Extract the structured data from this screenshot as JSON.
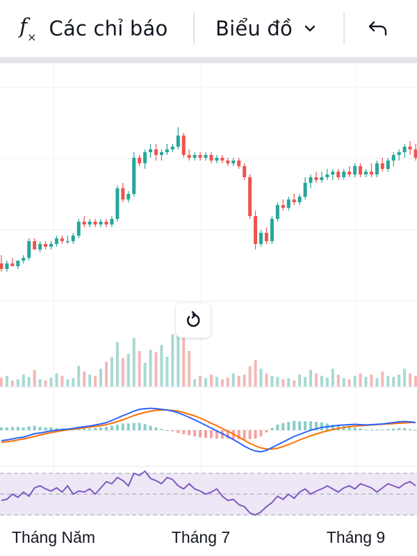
{
  "toolbar": {
    "indicators_label": "Các chỉ báo",
    "indicators_icon": "function-fx-icon",
    "chart_type_label": "Biểu đồ",
    "chart_type_icon": "chevron-down-icon",
    "undo_icon": "undo-arrow-icon"
  },
  "reset_icon": "reset-rotate-icon",
  "colors": {
    "up": "#26a69a",
    "down": "#ef5350",
    "volume_up": "#a8d9d3",
    "volume_down": "#f3b8b6",
    "macd_line": "#2962ff",
    "signal_line": "#ff6d00",
    "rsi_line": "#7e57c2",
    "rsi_band": "#ede7f6"
  },
  "chart_data": {
    "type": "candlestick",
    "time_labels": [
      "Tháng Năm",
      "Tháng 7",
      "Tháng 9"
    ],
    "panes": [
      "price",
      "volume",
      "macd",
      "rsi"
    ],
    "grid": true,
    "price": {
      "ohlc_relative": [
        [
          0.33,
          0.36,
          0.3,
          0.31
        ],
        [
          0.31,
          0.34,
          0.3,
          0.33
        ],
        [
          0.33,
          0.35,
          0.32,
          0.32
        ],
        [
          0.32,
          0.34,
          0.31,
          0.34
        ],
        [
          0.34,
          0.36,
          0.33,
          0.35
        ],
        [
          0.35,
          0.42,
          0.34,
          0.41
        ],
        [
          0.41,
          0.42,
          0.38,
          0.38
        ],
        [
          0.38,
          0.41,
          0.37,
          0.4
        ],
        [
          0.4,
          0.41,
          0.38,
          0.39
        ],
        [
          0.39,
          0.41,
          0.38,
          0.4
        ],
        [
          0.4,
          0.43,
          0.39,
          0.42
        ],
        [
          0.42,
          0.43,
          0.4,
          0.41
        ],
        [
          0.41,
          0.43,
          0.4,
          0.41
        ],
        [
          0.41,
          0.44,
          0.4,
          0.43
        ],
        [
          0.43,
          0.49,
          0.42,
          0.48
        ],
        [
          0.48,
          0.5,
          0.46,
          0.47
        ],
        [
          0.47,
          0.49,
          0.46,
          0.48
        ],
        [
          0.48,
          0.49,
          0.46,
          0.47
        ],
        [
          0.47,
          0.49,
          0.46,
          0.48
        ],
        [
          0.48,
          0.49,
          0.46,
          0.47
        ],
        [
          0.47,
          0.5,
          0.46,
          0.49
        ],
        [
          0.49,
          0.61,
          0.48,
          0.6
        ],
        [
          0.6,
          0.62,
          0.55,
          0.56
        ],
        [
          0.56,
          0.59,
          0.55,
          0.58
        ],
        [
          0.58,
          0.73,
          0.57,
          0.71
        ],
        [
          0.71,
          0.72,
          0.68,
          0.69
        ],
        [
          0.69,
          0.74,
          0.67,
          0.73
        ],
        [
          0.73,
          0.76,
          0.71,
          0.74
        ],
        [
          0.74,
          0.76,
          0.7,
          0.72
        ],
        [
          0.72,
          0.74,
          0.7,
          0.73
        ],
        [
          0.73,
          0.76,
          0.72,
          0.74
        ],
        [
          0.74,
          0.76,
          0.73,
          0.75
        ],
        [
          0.75,
          0.82,
          0.74,
          0.79
        ],
        [
          0.79,
          0.8,
          0.71,
          0.72
        ],
        [
          0.72,
          0.74,
          0.7,
          0.71
        ],
        [
          0.71,
          0.73,
          0.7,
          0.72
        ],
        [
          0.72,
          0.73,
          0.7,
          0.71
        ],
        [
          0.71,
          0.73,
          0.7,
          0.72
        ],
        [
          0.72,
          0.73,
          0.69,
          0.7
        ],
        [
          0.7,
          0.72,
          0.69,
          0.71
        ],
        [
          0.71,
          0.72,
          0.69,
          0.7
        ],
        [
          0.7,
          0.71,
          0.68,
          0.69
        ],
        [
          0.69,
          0.71,
          0.68,
          0.7
        ],
        [
          0.7,
          0.71,
          0.67,
          0.68
        ],
        [
          0.68,
          0.69,
          0.63,
          0.64
        ],
        [
          0.64,
          0.65,
          0.49,
          0.5
        ],
        [
          0.5,
          0.52,
          0.38,
          0.4
        ],
        [
          0.4,
          0.45,
          0.39,
          0.44
        ],
        [
          0.44,
          0.46,
          0.4,
          0.41
        ],
        [
          0.41,
          0.5,
          0.4,
          0.49
        ],
        [
          0.49,
          0.55,
          0.48,
          0.54
        ],
        [
          0.54,
          0.56,
          0.52,
          0.53
        ],
        [
          0.53,
          0.57,
          0.52,
          0.56
        ],
        [
          0.56,
          0.58,
          0.54,
          0.55
        ],
        [
          0.55,
          0.58,
          0.54,
          0.57
        ],
        [
          0.57,
          0.64,
          0.56,
          0.62
        ],
        [
          0.62,
          0.65,
          0.6,
          0.64
        ],
        [
          0.64,
          0.66,
          0.62,
          0.63
        ],
        [
          0.63,
          0.66,
          0.62,
          0.64
        ],
        [
          0.64,
          0.67,
          0.63,
          0.65
        ],
        [
          0.65,
          0.67,
          0.63,
          0.66
        ],
        [
          0.66,
          0.67,
          0.63,
          0.64
        ],
        [
          0.64,
          0.67,
          0.63,
          0.66
        ],
        [
          0.66,
          0.68,
          0.64,
          0.65
        ],
        [
          0.65,
          0.69,
          0.64,
          0.68
        ],
        [
          0.68,
          0.69,
          0.64,
          0.65
        ],
        [
          0.65,
          0.67,
          0.64,
          0.66
        ],
        [
          0.66,
          0.69,
          0.64,
          0.65
        ],
        [
          0.65,
          0.7,
          0.64,
          0.69
        ],
        [
          0.69,
          0.71,
          0.66,
          0.67
        ],
        [
          0.67,
          0.71,
          0.66,
          0.7
        ],
        [
          0.7,
          0.73,
          0.68,
          0.72
        ],
        [
          0.72,
          0.74,
          0.7,
          0.73
        ],
        [
          0.73,
          0.76,
          0.71,
          0.75
        ],
        [
          0.75,
          0.77,
          0.72,
          0.74
        ],
        [
          0.74,
          0.76,
          0.7,
          0.71
        ]
      ]
    },
    "volume_relative": [
      0.15,
      0.18,
      0.1,
      0.12,
      0.2,
      0.16,
      0.28,
      0.12,
      0.1,
      0.15,
      0.22,
      0.18,
      0.12,
      0.14,
      0.35,
      0.25,
      0.2,
      0.18,
      0.3,
      0.42,
      0.5,
      0.75,
      0.48,
      0.55,
      0.82,
      0.6,
      0.4,
      0.62,
      0.58,
      0.7,
      0.5,
      0.88,
      0.95,
      0.9,
      0.6,
      0.12,
      0.18,
      0.14,
      0.2,
      0.16,
      0.12,
      0.15,
      0.22,
      0.18,
      0.2,
      0.34,
      0.45,
      0.3,
      0.22,
      0.18,
      0.16,
      0.12,
      0.14,
      0.1,
      0.2,
      0.16,
      0.28,
      0.22,
      0.18,
      0.15,
      0.3,
      0.2,
      0.14,
      0.12,
      0.18,
      0.22,
      0.16,
      0.2,
      0.14,
      0.25,
      0.18,
      0.16,
      0.2,
      0.3,
      0.22,
      0.18
    ],
    "macd_relative": [
      -0.3,
      -0.28,
      -0.25,
      -0.22,
      -0.2,
      -0.15,
      -0.1,
      -0.08,
      -0.05,
      -0.02,
      0,
      0.02,
      0.03,
      0.05,
      0.08,
      0.1,
      0.12,
      0.15,
      0.18,
      0.22,
      0.28,
      0.35,
      0.42,
      0.48,
      0.55,
      0.6,
      0.62,
      0.63,
      0.62,
      0.6,
      0.58,
      0.55,
      0.5,
      0.44,
      0.37,
      0.3,
      0.22,
      0.14,
      0.06,
      -0.02,
      -0.1,
      -0.18,
      -0.27,
      -0.36,
      -0.46,
      -0.54,
      -0.6,
      -0.62,
      -0.58,
      -0.5,
      -0.42,
      -0.34,
      -0.26,
      -0.18,
      -0.12,
      -0.06,
      0,
      0.04,
      0.08,
      0.1,
      0.12,
      0.14,
      0.15,
      0.16,
      0.17,
      0.16,
      0.15,
      0.16,
      0.17,
      0.18,
      0.2,
      0.22,
      0.24,
      0.25,
      0.24,
      0.22
    ],
    "signal_relative": [
      -0.35,
      -0.33,
      -0.31,
      -0.28,
      -0.25,
      -0.22,
      -0.18,
      -0.14,
      -0.1,
      -0.07,
      -0.04,
      -0.01,
      0.01,
      0.03,
      0.05,
      0.07,
      0.09,
      0.11,
      0.13,
      0.16,
      0.2,
      0.25,
      0.3,
      0.36,
      0.42,
      0.47,
      0.51,
      0.55,
      0.57,
      0.58,
      0.58,
      0.57,
      0.55,
      0.51,
      0.46,
      0.41,
      0.35,
      0.28,
      0.2,
      0.13,
      0.05,
      -0.03,
      -0.11,
      -0.2,
      -0.29,
      -0.38,
      -0.45,
      -0.51,
      -0.54,
      -0.54,
      -0.52,
      -0.47,
      -0.41,
      -0.35,
      -0.28,
      -0.22,
      -0.16,
      -0.11,
      -0.06,
      -0.02,
      0.02,
      0.05,
      0.08,
      0.1,
      0.12,
      0.13,
      0.14,
      0.15,
      0.16,
      0.17,
      0.18,
      0.19,
      0.2,
      0.21,
      0.22,
      0.22
    ],
    "rsi": [
      44,
      45,
      50,
      47,
      52,
      48,
      56,
      58,
      55,
      53,
      56,
      52,
      58,
      50,
      53,
      52,
      55,
      50,
      56,
      62,
      60,
      66,
      63,
      58,
      70,
      68,
      72,
      65,
      63,
      60,
      66,
      64,
      58,
      55,
      60,
      55,
      53,
      50,
      52,
      55,
      48,
      44,
      45,
      40,
      38,
      32,
      30,
      33,
      38,
      42,
      48,
      45,
      50,
      46,
      52,
      55,
      50,
      53,
      55,
      58,
      55,
      52,
      56,
      58,
      55,
      60,
      58,
      56,
      52,
      56,
      60,
      58,
      56,
      60,
      62,
      58
    ]
  }
}
